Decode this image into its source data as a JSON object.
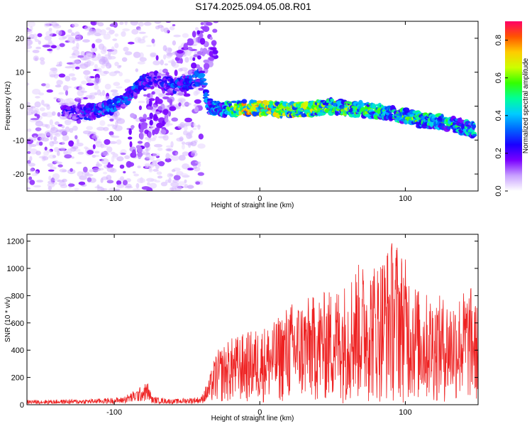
{
  "title": "S174.2025.094.05.08.R01",
  "chart_data": [
    {
      "type": "heatmap",
      "xlabel": "Height of straight line (km)",
      "ylabel": "Frequency (Hz)",
      "xlim": [
        -160,
        150
      ],
      "ylim": [
        -25,
        25
      ],
      "x_ticks": [
        "-100",
        "0",
        "100"
      ],
      "y_ticks": [
        "-20",
        "-10",
        "0",
        "10",
        "20"
      ],
      "colorbar": {
        "label": "Normalized spectral amplitude",
        "range": [
          0.0,
          0.9
        ],
        "ticks": [
          "0.0",
          "0.2",
          "0.4",
          "0.6",
          "0.8"
        ],
        "colors": [
          "#ffffff",
          "#c8a0ff",
          "#7a00ff",
          "#1a00ff",
          "#0066ff",
          "#00ccff",
          "#00ff99",
          "#33ff00",
          "#ccff00",
          "#ffcc00",
          "#ff5500",
          "#ff0066"
        ]
      },
      "ridge": [
        {
          "x": -130,
          "y": -1.5,
          "amp": 0.25
        },
        {
          "x": -120,
          "y": -2,
          "amp": 0.3
        },
        {
          "x": -110,
          "y": -1,
          "amp": 0.35
        },
        {
          "x": -100,
          "y": 0,
          "amp": 0.35
        },
        {
          "x": -90,
          "y": 3,
          "amp": 0.35
        },
        {
          "x": -80,
          "y": 7,
          "amp": 0.3
        },
        {
          "x": -70,
          "y": 8,
          "amp": 0.25
        },
        {
          "x": -60,
          "y": 6,
          "amp": 0.3
        },
        {
          "x": -50,
          "y": 7,
          "amp": 0.35
        },
        {
          "x": -40,
          "y": 9,
          "amp": 0.35
        },
        {
          "x": -35,
          "y": 0,
          "amp": 0.4
        },
        {
          "x": -25,
          "y": -1,
          "amp": 0.45
        },
        {
          "x": -10,
          "y": -0.5,
          "amp": 0.75
        },
        {
          "x": 10,
          "y": -1,
          "amp": 0.7
        },
        {
          "x": 30,
          "y": -1,
          "amp": 0.65
        },
        {
          "x": 50,
          "y": 0,
          "amp": 0.6
        },
        {
          "x": 70,
          "y": -1,
          "amp": 0.55
        },
        {
          "x": 90,
          "y": -2,
          "amp": 0.5
        },
        {
          "x": 110,
          "y": -4,
          "amp": 0.55
        },
        {
          "x": 130,
          "y": -5,
          "amp": 0.5
        },
        {
          "x": 145,
          "y": -7,
          "amp": 0.45
        }
      ],
      "background_noise_x_range": [
        -160,
        -40
      ]
    },
    {
      "type": "line",
      "xlabel": "Height of straight line (km)",
      "ylabel": "SNR (10 * v/v)",
      "xlim": [
        -160,
        150
      ],
      "ylim": [
        0,
        1250
      ],
      "x_ticks": [
        "-100",
        "0",
        "100"
      ],
      "y_ticks": [
        "0",
        "200",
        "400",
        "600",
        "800",
        "1000",
        "1200"
      ],
      "color": "#ee2222",
      "envelope": [
        {
          "x": -160,
          "y": 35
        },
        {
          "x": -120,
          "y": 40
        },
        {
          "x": -95,
          "y": 55
        },
        {
          "x": -85,
          "y": 110
        },
        {
          "x": -77,
          "y": 170
        },
        {
          "x": -74,
          "y": 60
        },
        {
          "x": -60,
          "y": 40
        },
        {
          "x": -40,
          "y": 60
        },
        {
          "x": -35,
          "y": 180
        },
        {
          "x": -30,
          "y": 380
        },
        {
          "x": -20,
          "y": 480
        },
        {
          "x": -10,
          "y": 520
        },
        {
          "x": 0,
          "y": 560
        },
        {
          "x": 10,
          "y": 600
        },
        {
          "x": 20,
          "y": 740
        },
        {
          "x": 40,
          "y": 800
        },
        {
          "x": 60,
          "y": 900
        },
        {
          "x": 65,
          "y": 1020
        },
        {
          "x": 80,
          "y": 1050
        },
        {
          "x": 93,
          "y": 1240
        },
        {
          "x": 110,
          "y": 820
        },
        {
          "x": 130,
          "y": 780
        },
        {
          "x": 145,
          "y": 860
        },
        {
          "x": 150,
          "y": 700
        }
      ]
    }
  ]
}
